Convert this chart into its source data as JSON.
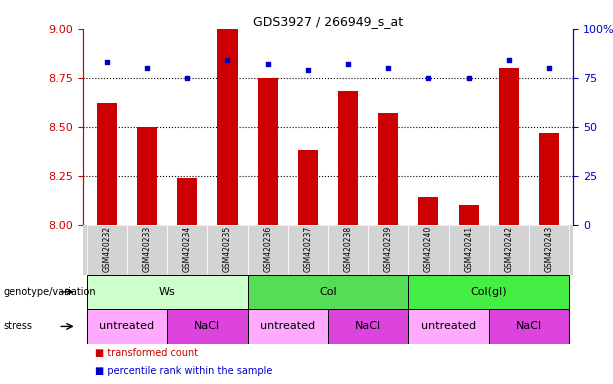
{
  "title": "GDS3927 / 266949_s_at",
  "samples": [
    "GSM420232",
    "GSM420233",
    "GSM420234",
    "GSM420235",
    "GSM420236",
    "GSM420237",
    "GSM420238",
    "GSM420239",
    "GSM420240",
    "GSM420241",
    "GSM420242",
    "GSM420243"
  ],
  "transformed_count": [
    8.62,
    8.5,
    8.24,
    9.0,
    8.75,
    8.38,
    8.68,
    8.57,
    8.14,
    8.1,
    8.8,
    8.47
  ],
  "percentile_rank": [
    83,
    80,
    75,
    84,
    82,
    79,
    82,
    80,
    75,
    75,
    84,
    80
  ],
  "ylim_left": [
    8.0,
    9.0
  ],
  "ylim_right": [
    0,
    100
  ],
  "yticks_left": [
    8.0,
    8.25,
    8.5,
    8.75,
    9.0
  ],
  "yticks_right": [
    0,
    25,
    50,
    75,
    100
  ],
  "ytick_labels_right": [
    "0",
    "25",
    "50",
    "75",
    "100%"
  ],
  "bar_color": "#cc0000",
  "dot_color": "#0000cc",
  "bar_width": 0.5,
  "genotype_groups": [
    {
      "label": "Ws",
      "start": 0,
      "end": 3,
      "color": "#ccffcc"
    },
    {
      "label": "Col",
      "start": 4,
      "end": 7,
      "color": "#55dd55"
    },
    {
      "label": "Col(gl)",
      "start": 8,
      "end": 11,
      "color": "#44ee44"
    }
  ],
  "stress_groups": [
    {
      "label": "untreated",
      "start": 0,
      "end": 1,
      "color": "#ffaaff"
    },
    {
      "label": "NaCl",
      "start": 2,
      "end": 3,
      "color": "#dd44dd"
    },
    {
      "label": "untreated",
      "start": 4,
      "end": 5,
      "color": "#ffaaff"
    },
    {
      "label": "NaCl",
      "start": 6,
      "end": 7,
      "color": "#dd44dd"
    },
    {
      "label": "untreated",
      "start": 8,
      "end": 9,
      "color": "#ffaaff"
    },
    {
      "label": "NaCl",
      "start": 10,
      "end": 11,
      "color": "#dd44dd"
    }
  ],
  "genotype_label": "genotype/variation",
  "stress_label": "stress",
  "legend_items": [
    {
      "label": "transformed count",
      "color": "#cc0000"
    },
    {
      "label": "percentile rank within the sample",
      "color": "#0000cc"
    }
  ],
  "sample_bg_color": "#d3d3d3",
  "bg_color": "#ffffff",
  "left_axis_color": "#cc0000",
  "right_axis_color": "#0000cc"
}
